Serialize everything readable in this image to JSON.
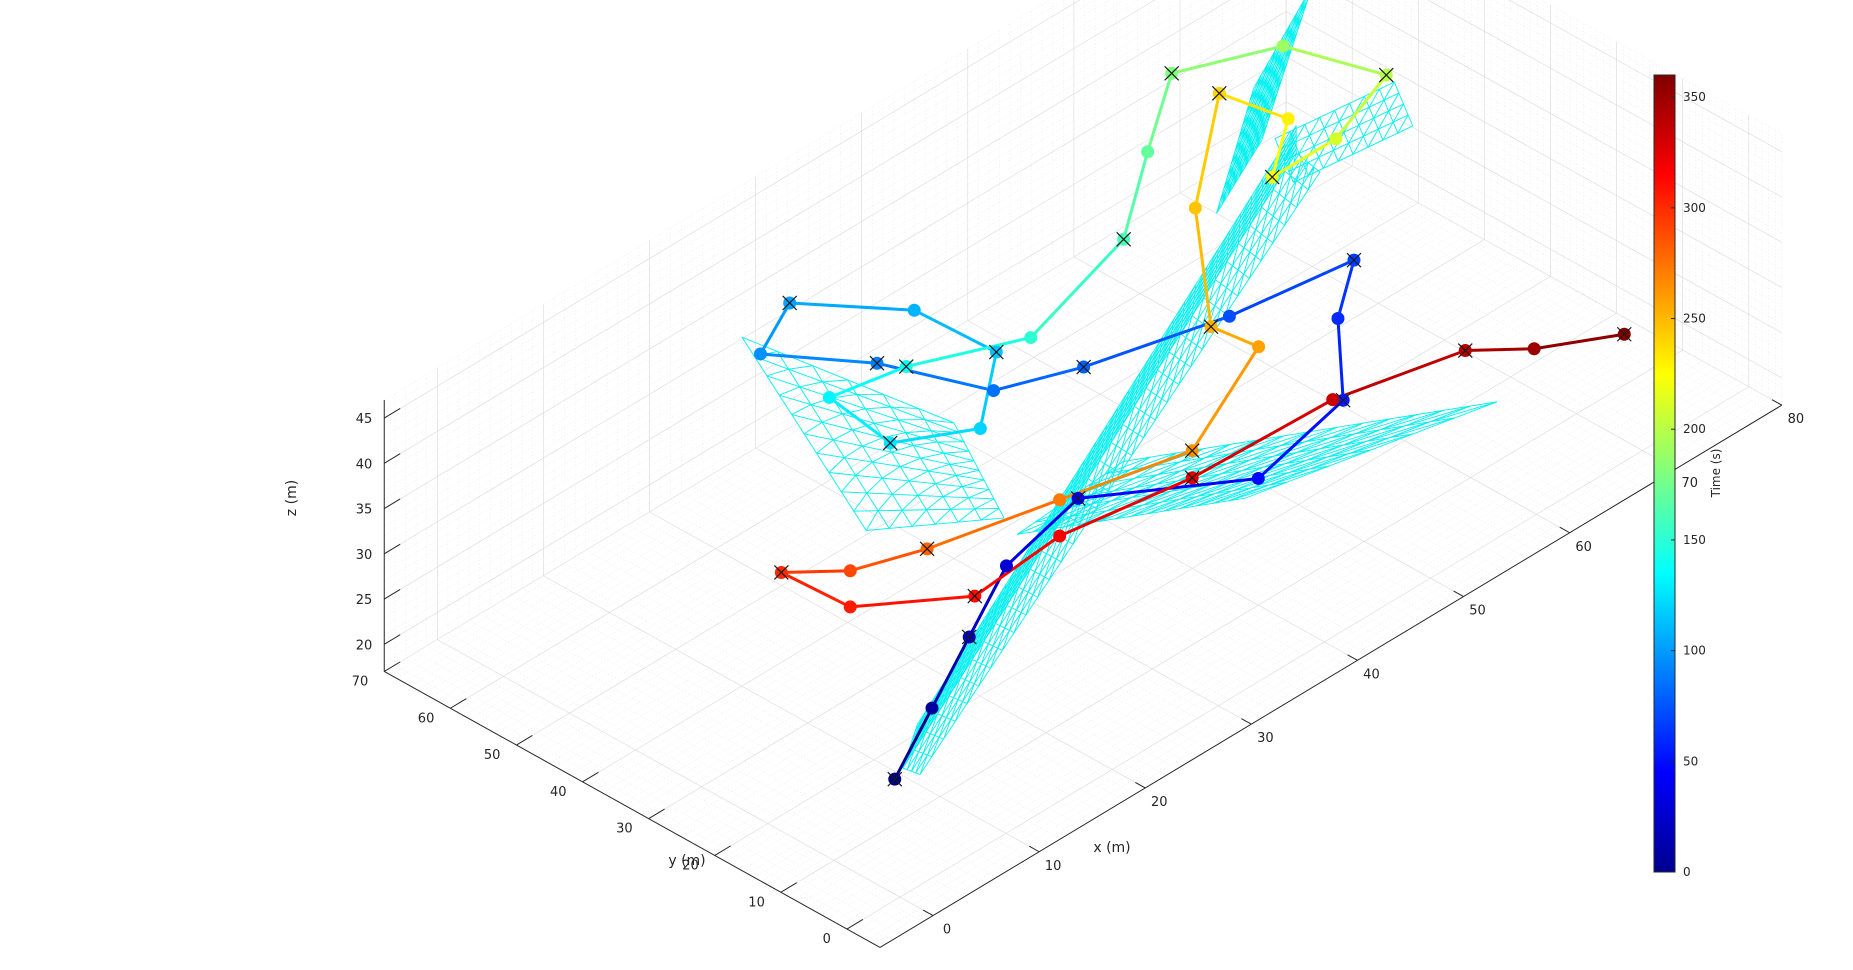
{
  "chart_data": {
    "type": "scatter",
    "subtype": "3d-trajectory",
    "title": "",
    "xlabel": "x (m)",
    "ylabel": "y (m)",
    "zlabel": "z (m)",
    "xlim": [
      -5,
      80
    ],
    "ylim": [
      -5,
      70
    ],
    "zlim": [
      17,
      47
    ],
    "xticks": [
      0,
      10,
      20,
      30,
      40,
      50,
      60,
      70,
      80
    ],
    "yticks": [
      0,
      10,
      20,
      30,
      40,
      50,
      60,
      70
    ],
    "zticks": [
      20,
      25,
      30,
      35,
      40,
      45
    ],
    "grid": true,
    "colorbar": {
      "label": "Time (s)",
      "colormap": "jet",
      "range": [
        0,
        360
      ],
      "ticks": [
        0,
        50,
        100,
        150,
        200,
        250,
        300,
        350
      ]
    },
    "trajectory": [
      {
        "t": 0,
        "x": 2,
        "y": 4,
        "z": 27
      },
      {
        "t": 10,
        "x": 8,
        "y": 8,
        "z": 29
      },
      {
        "t": 20,
        "x": 14,
        "y": 12,
        "z": 31
      },
      {
        "t": 30,
        "x": 20,
        "y": 16,
        "z": 33
      },
      {
        "t": 40,
        "x": 28,
        "y": 18,
        "z": 34
      },
      {
        "t": 48,
        "x": 40,
        "y": 10,
        "z": 31
      },
      {
        "t": 54,
        "x": 48,
        "y": 10,
        "z": 34
      },
      {
        "t": 60,
        "x": 50,
        "y": 14,
        "z": 40
      },
      {
        "t": 66,
        "x": 54,
        "y": 18,
        "z": 42
      },
      {
        "t": 72,
        "x": 46,
        "y": 24,
        "z": 39
      },
      {
        "t": 78,
        "x": 36,
        "y": 30,
        "z": 38
      },
      {
        "t": 84,
        "x": 30,
        "y": 34,
        "z": 38
      },
      {
        "t": 90,
        "x": 24,
        "y": 42,
        "z": 42
      },
      {
        "t": 96,
        "x": 18,
        "y": 50,
        "z": 44
      },
      {
        "t": 102,
        "x": 22,
        "y": 52,
        "z": 46
      },
      {
        "t": 108,
        "x": 30,
        "y": 46,
        "z": 42
      },
      {
        "t": 114,
        "x": 34,
        "y": 40,
        "z": 37
      },
      {
        "t": 120,
        "x": 30,
        "y": 36,
        "z": 33
      },
      {
        "t": 126,
        "x": 24,
        "y": 40,
        "z": 34
      },
      {
        "t": 132,
        "x": 22,
        "y": 46,
        "z": 38
      },
      {
        "t": 140,
        "x": 28,
        "y": 44,
        "z": 38
      },
      {
        "t": 150,
        "x": 36,
        "y": 38,
        "z": 38
      },
      {
        "t": 160,
        "x": 46,
        "y": 40,
        "z": 41
      },
      {
        "t": 170,
        "x": 52,
        "y": 46,
        "z": 44
      },
      {
        "t": 180,
        "x": 58,
        "y": 52,
        "z": 46
      },
      {
        "t": 190,
        "x": 66,
        "y": 48,
        "z": 45
      },
      {
        "t": 200,
        "x": 72,
        "y": 42,
        "z": 40
      },
      {
        "t": 210,
        "x": 66,
        "y": 40,
        "z": 38
      },
      {
        "t": 220,
        "x": 60,
        "y": 40,
        "z": 38
      },
      {
        "t": 230,
        "x": 64,
        "y": 44,
        "z": 40
      },
      {
        "t": 240,
        "x": 60,
        "y": 48,
        "z": 44
      },
      {
        "t": 246,
        "x": 54,
        "y": 42,
        "z": 38
      },
      {
        "t": 252,
        "x": 48,
        "y": 30,
        "z": 34
      },
      {
        "t": 258,
        "x": 50,
        "y": 26,
        "z": 32
      },
      {
        "t": 264,
        "x": 40,
        "y": 20,
        "z": 30
      },
      {
        "t": 272,
        "x": 30,
        "y": 24,
        "z": 30
      },
      {
        "t": 280,
        "x": 20,
        "y": 28,
        "z": 30
      },
      {
        "t": 290,
        "x": 14,
        "y": 30,
        "z": 31
      },
      {
        "t": 300,
        "x": 10,
        "y": 34,
        "z": 32
      },
      {
        "t": 306,
        "x": 14,
        "y": 30,
        "z": 27
      },
      {
        "t": 312,
        "x": 22,
        "y": 24,
        "z": 25
      },
      {
        "t": 318,
        "x": 30,
        "y": 24,
        "z": 26
      },
      {
        "t": 326,
        "x": 40,
        "y": 20,
        "z": 27
      },
      {
        "t": 334,
        "x": 52,
        "y": 18,
        "z": 28
      },
      {
        "t": 342,
        "x": 62,
        "y": 14,
        "z": 28
      },
      {
        "t": 350,
        "x": 66,
        "y": 10,
        "z": 27
      },
      {
        "t": 360,
        "x": 72,
        "y": 6,
        "z": 26
      }
    ],
    "aircraft_color": "#00f0f0"
  }
}
